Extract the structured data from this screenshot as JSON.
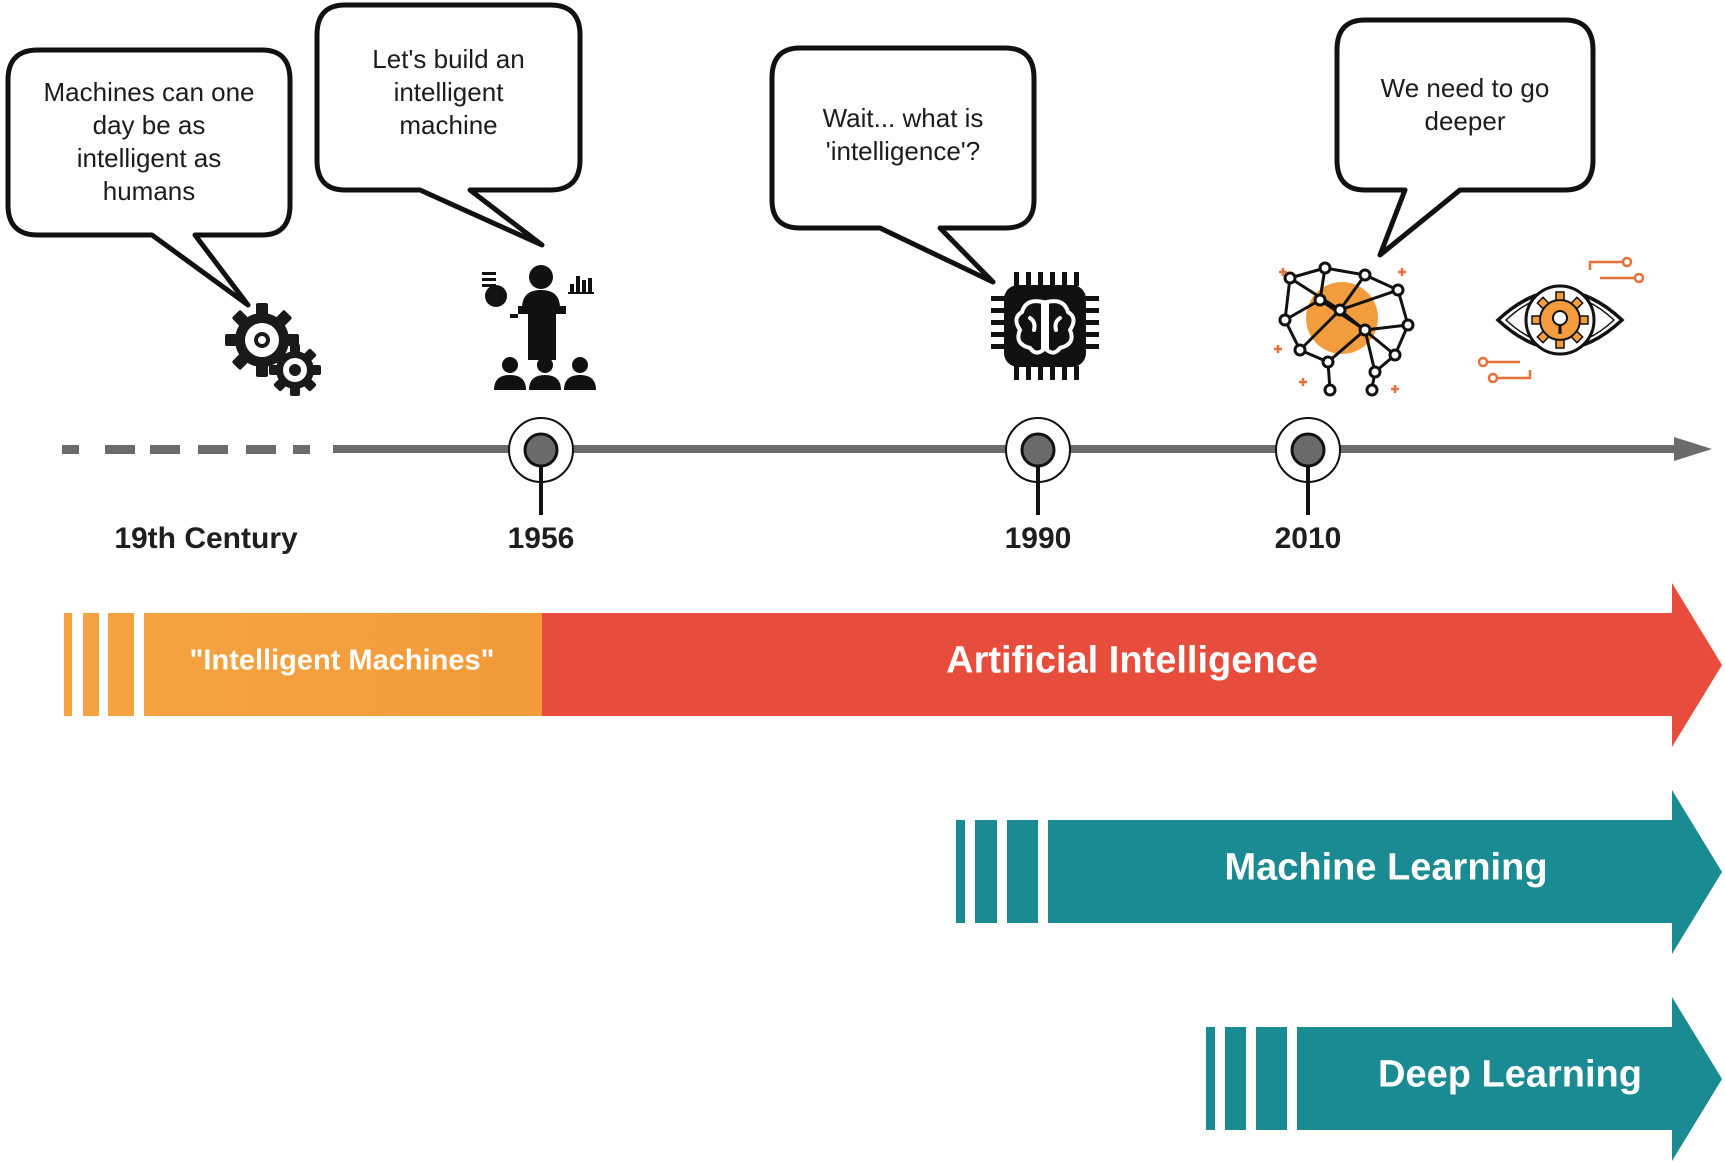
{
  "bubbles": [
    {
      "id": "bubble-19th-century",
      "text": "Machines can one\nday be as\nintelligent as\nhumans"
    },
    {
      "id": "bubble-1956",
      "text": "Let's build an\nintelligent\nmachine"
    },
    {
      "id": "bubble-1990",
      "text": "Wait...  what is\n'intelligence'?"
    },
    {
      "id": "bubble-2010",
      "text": "We need to go\ndeeper"
    }
  ],
  "timeline": {
    "labels": [
      "19th Century",
      "1956",
      "1990",
      "2010"
    ]
  },
  "bands": {
    "intelligent_machines": "\"Intelligent Machines\"",
    "artificial_intelligence": "Artificial Intelligence",
    "machine_learning": "Machine Learning",
    "deep_learning": "Deep Learning"
  },
  "icons": [
    "gears-icon",
    "presenter-audience-icon",
    "brain-chip-icon",
    "neural-network-icon",
    "eye-gear-icon"
  ],
  "colors": {
    "orange": "#F39C3D",
    "red": "#E74C3C",
    "teal": "#1A8A93",
    "timeline_gray": "#6b6b6b",
    "dark": "#1e1e1e"
  }
}
